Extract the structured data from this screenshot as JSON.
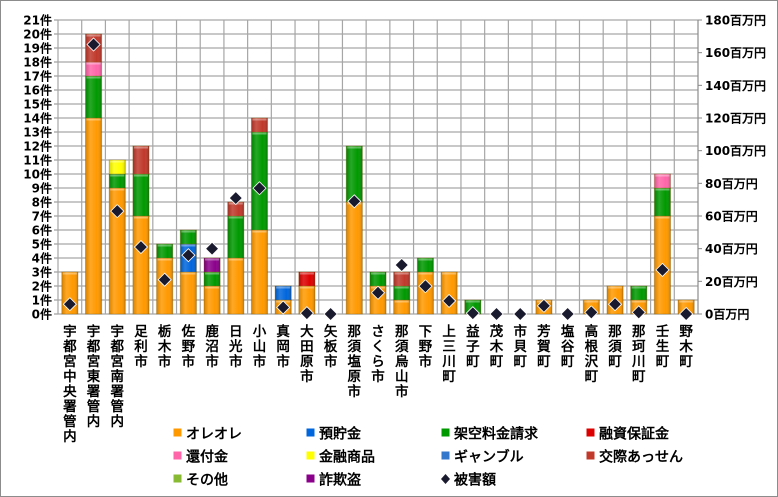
{
  "chart_data": {
    "type": "bar",
    "stacked": true,
    "categories": [
      "宇都宮中央署管内",
      "宇都宮東署管内",
      "宇都宮南署管内",
      "足利市",
      "栃木市",
      "佐野市",
      "鹿沼市",
      "日光市",
      "小山市",
      "真岡市",
      "大田原市",
      "矢板市",
      "那須塩原市",
      "さくら市",
      "那須烏山市",
      "下野市",
      "上三川町",
      "益子町",
      "茂木町",
      "市貝町",
      "芳賀町",
      "塩谷町",
      "高根沢町",
      "那須町",
      "那珂川町",
      "壬生町",
      "野木町"
    ],
    "y_left": {
      "unit": "件",
      "ylim": [
        0,
        21
      ],
      "ticks": [
        0,
        1,
        2,
        3,
        4,
        5,
        6,
        7,
        8,
        9,
        10,
        11,
        12,
        13,
        14,
        15,
        16,
        17,
        18,
        19,
        20,
        21
      ]
    },
    "y_right": {
      "unit": "百万円",
      "ylim": [
        0,
        180
      ],
      "ticks": [
        0,
        20,
        40,
        60,
        80,
        100,
        120,
        140,
        160,
        180
      ]
    },
    "grid": true,
    "legend_position": "bottom",
    "series": [
      {
        "name": "オレオレ",
        "color": "#FF9900",
        "values": [
          3,
          14,
          9,
          7,
          4,
          3,
          2,
          4,
          6,
          1,
          2,
          0,
          8,
          2,
          1,
          3,
          3,
          0,
          0,
          0,
          1,
          0,
          1,
          2,
          1,
          7,
          1
        ]
      },
      {
        "name": "預貯金",
        "color": "#0066DD",
        "values": [
          0,
          0,
          0,
          0,
          0,
          2,
          0,
          0,
          0,
          1,
          0,
          0,
          0,
          0,
          0,
          0,
          0,
          0,
          0,
          0,
          0,
          0,
          0,
          0,
          0,
          0,
          0
        ]
      },
      {
        "name": "架空料金請求",
        "color": "#009900",
        "values": [
          0,
          3,
          1,
          3,
          1,
          1,
          1,
          3,
          7,
          0,
          0,
          0,
          4,
          1,
          1,
          1,
          0,
          1,
          0,
          0,
          0,
          0,
          0,
          0,
          1,
          2,
          0
        ]
      },
      {
        "name": "融資保証金",
        "color": "#DD0000",
        "values": [
          0,
          0,
          0,
          0,
          0,
          0,
          0,
          0,
          0,
          0,
          1,
          0,
          0,
          0,
          0,
          0,
          0,
          0,
          0,
          0,
          0,
          0,
          0,
          0,
          0,
          0,
          0
        ]
      },
      {
        "name": "還付金",
        "color": "#FF66AA",
        "values": [
          0,
          1,
          0,
          0,
          0,
          0,
          0,
          0,
          0,
          0,
          0,
          0,
          0,
          0,
          0,
          0,
          0,
          0,
          0,
          0,
          0,
          0,
          0,
          0,
          0,
          1,
          0
        ]
      },
      {
        "name": "金融商品",
        "color": "#FFFF00",
        "values": [
          0,
          0,
          1,
          0,
          0,
          0,
          0,
          0,
          0,
          0,
          0,
          0,
          0,
          0,
          0,
          0,
          0,
          0,
          0,
          0,
          0,
          0,
          0,
          0,
          0,
          0,
          0
        ]
      },
      {
        "name": "ギャンブル",
        "color": "#3377CC",
        "values": [
          0,
          0,
          0,
          0,
          0,
          0,
          0,
          0,
          0,
          0,
          0,
          0,
          0,
          0,
          0,
          0,
          0,
          0,
          0,
          0,
          0,
          0,
          0,
          0,
          0,
          0,
          0
        ]
      },
      {
        "name": "交際あっせん",
        "color": "#C0392B",
        "values": [
          0,
          2,
          0,
          2,
          0,
          0,
          0,
          1,
          1,
          0,
          0,
          0,
          0,
          0,
          1,
          0,
          0,
          0,
          0,
          0,
          0,
          0,
          0,
          0,
          0,
          0,
          0
        ]
      },
      {
        "name": "その他",
        "color": "#88BB33",
        "values": [
          0,
          0,
          0,
          0,
          0,
          0,
          0,
          0,
          0,
          0,
          0,
          0,
          0,
          0,
          0,
          0,
          0,
          0,
          0,
          0,
          0,
          0,
          0,
          0,
          0,
          0,
          0
        ]
      },
      {
        "name": "詐欺盗",
        "color": "#8B008B",
        "values": [
          0,
          0,
          0,
          0,
          0,
          0,
          1,
          0,
          0,
          0,
          0,
          0,
          0,
          0,
          0,
          0,
          0,
          0,
          0,
          0,
          0,
          0,
          0,
          0,
          0,
          0,
          0
        ]
      }
    ],
    "line_series": {
      "name": "被害額",
      "color": "#1a1a2e",
      "axis": "right",
      "marker": "diamond",
      "values": [
        6,
        165,
        63,
        41,
        21,
        36,
        40,
        71,
        77,
        4,
        0.5,
        0,
        69,
        13,
        30,
        17,
        8,
        0.5,
        0,
        0,
        5,
        0,
        1,
        6,
        1,
        27,
        0
      ]
    }
  }
}
